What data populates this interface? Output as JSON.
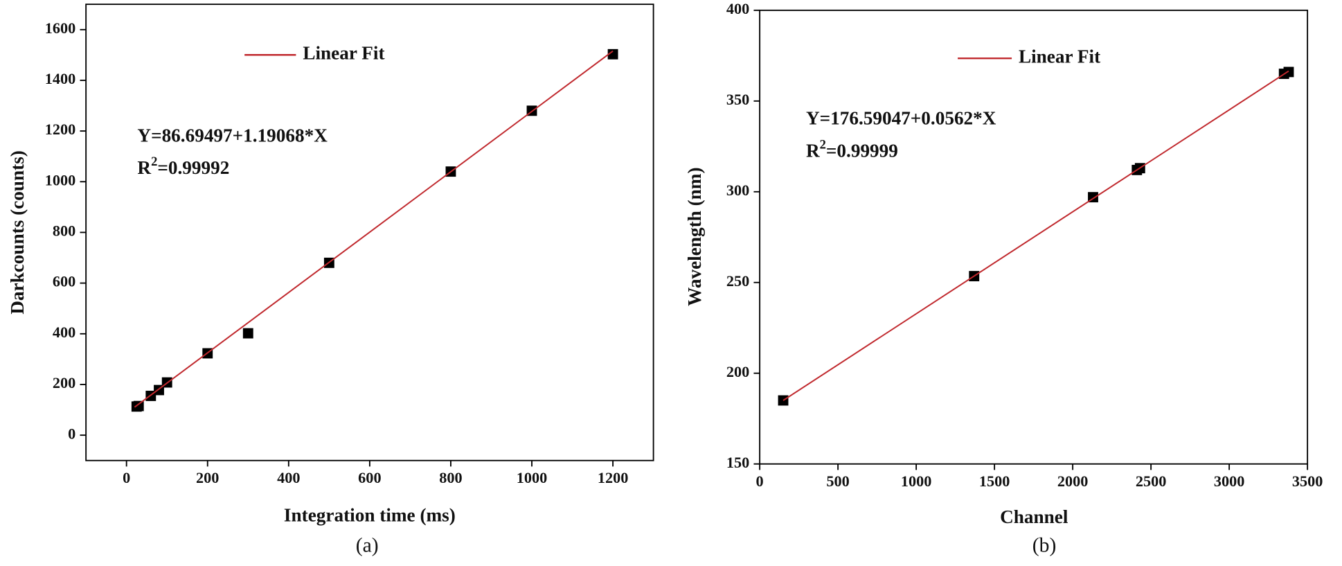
{
  "chart_data": [
    {
      "type": "scatter",
      "caption": "(a)",
      "x_label": "Integration time (ms)",
      "y_label": "Darkcounts (counts)",
      "equation": "Y=86.69497+1.19068*X",
      "r2": {
        "base": "R",
        "sup": "2",
        "value": "=0.99992"
      },
      "xlim": [
        -100,
        1300
      ],
      "ylim": [
        -100,
        1700
      ],
      "xticks": [
        0,
        200,
        400,
        600,
        800,
        1000,
        1200
      ],
      "yticks": [
        0,
        200,
        400,
        600,
        800,
        1000,
        1200,
        1400,
        1600
      ],
      "legend": "top",
      "series": [
        {
          "kind": "scatter",
          "color": "#000000",
          "x": [
            25,
            30,
            60,
            80,
            100,
            200,
            300,
            500,
            800,
            1000,
            1200
          ],
          "values": [
            113,
            115,
            155,
            178,
            208,
            323,
            402,
            680,
            1040,
            1280,
            1503
          ]
        },
        {
          "name": "Linear Fit",
          "kind": "line",
          "color": "#c0282d",
          "x": [
            20,
            1200
          ],
          "values": [
            110.5,
            1515.5
          ]
        }
      ]
    },
    {
      "type": "scatter",
      "caption": "(b)",
      "x_label": "Channel",
      "y_label": "Wavelength (nm)",
      "equation": "Y=176.59047+0.0562*X",
      "r2": {
        "base": "R",
        "sup": "2",
        "value": "=0.99999"
      },
      "xlim": [
        0,
        3500
      ],
      "ylim": [
        150,
        400
      ],
      "xticks": [
        0,
        500,
        1000,
        1500,
        2000,
        2500,
        3000,
        3500
      ],
      "yticks": [
        150,
        200,
        250,
        300,
        350,
        400
      ],
      "legend": "top",
      "series": [
        {
          "kind": "scatter",
          "color": "#000000",
          "x": [
            150,
            1370,
            2130,
            2410,
            2430,
            3350,
            3380
          ],
          "values": [
            185,
            253.5,
            297,
            312,
            313,
            365,
            366
          ]
        },
        {
          "name": "Linear Fit",
          "kind": "line",
          "color": "#c0282d",
          "x": [
            150,
            3380
          ],
          "values": [
            185.0,
            366.5
          ]
        }
      ]
    }
  ]
}
